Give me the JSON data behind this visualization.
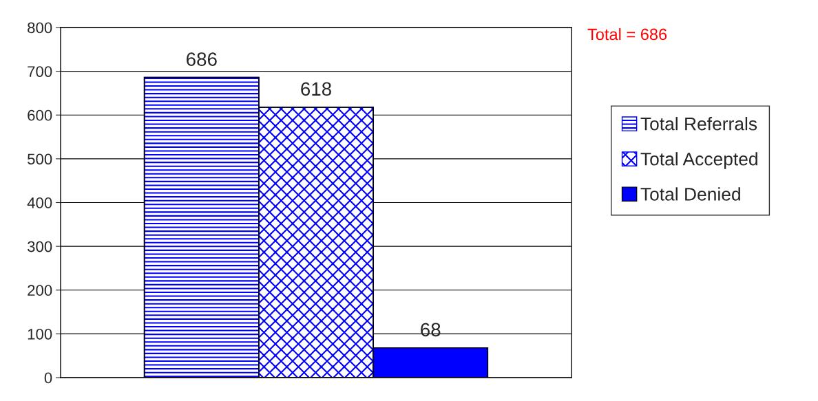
{
  "chart_data": {
    "type": "bar",
    "categories": [
      null
    ],
    "series": [
      {
        "name": "Total Referrals",
        "color": "#0000ff",
        "values": [
          686
        ]
      },
      {
        "name": "Total Accepted",
        "color": "#0000ff",
        "values": [
          618
        ]
      },
      {
        "name": "Total Denied",
        "color": "#0000ff",
        "values": [
          68
        ]
      }
    ],
    "ylim": [
      0,
      800
    ],
    "yticks": [
      0,
      100,
      200,
      300,
      400,
      500,
      600,
      700,
      800
    ],
    "grid": "y",
    "legend": "right",
    "data_labels": true,
    "annotations": [
      "Total = 686"
    ]
  }
}
